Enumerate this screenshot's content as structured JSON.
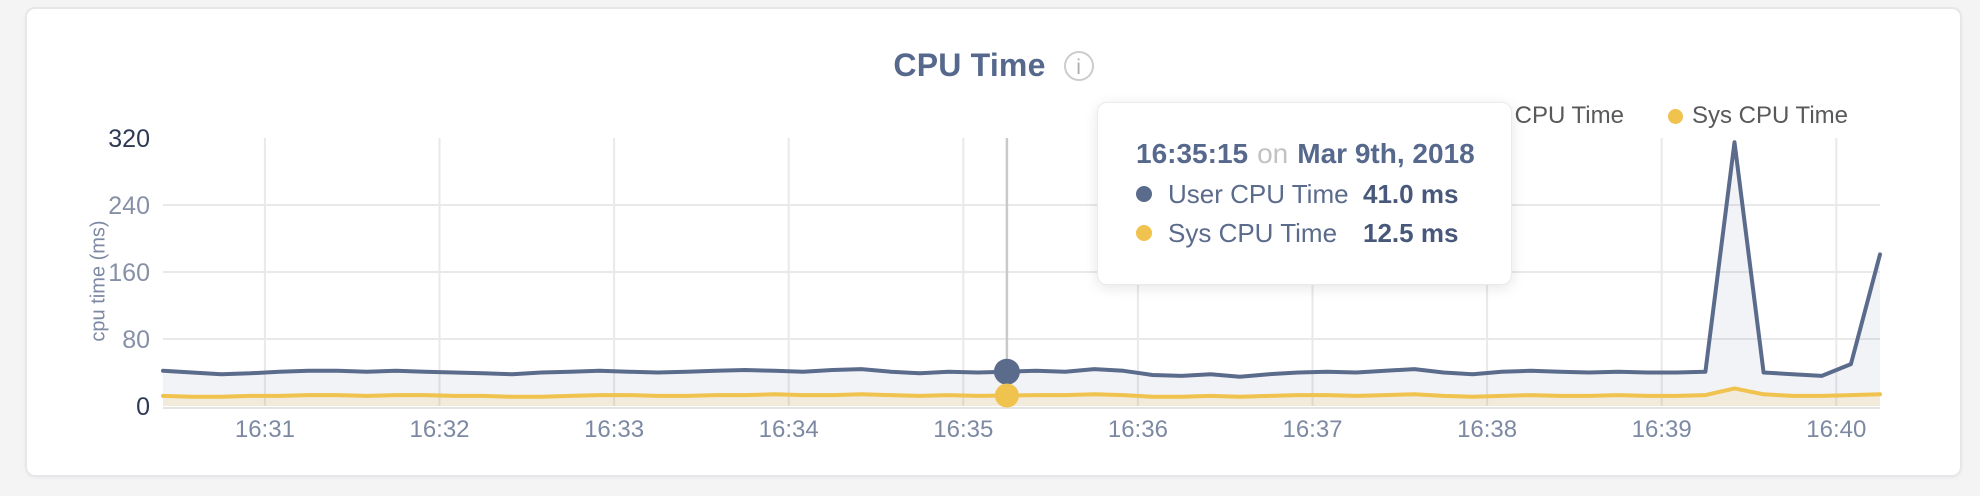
{
  "header": {
    "info_icon_glyph": "i"
  },
  "tooltip": {
    "time": "16:35:15",
    "connector": "on",
    "date": "Mar 9th, 2018",
    "rows": [
      {
        "label": "User CPU Time",
        "value": "41.0 ms"
      },
      {
        "label": "Sys CPU Time",
        "value": "12.5 ms"
      }
    ]
  },
  "chart_data": {
    "type": "area",
    "title": "CPU Time",
    "xlabel": "",
    "ylabel": "cpu time (ms)",
    "ylim": [
      0,
      320
    ],
    "yticks": [
      0,
      80,
      160,
      240,
      320
    ],
    "grid": true,
    "legend_position": "top-right",
    "xtick_labels": [
      "16:31",
      "16:32",
      "16:33",
      "16:34",
      "16:35",
      "16:36",
      "16:37",
      "16:38",
      "16:39",
      "16:40"
    ],
    "x_times": [
      "16:30:25",
      "16:30:35",
      "16:30:45",
      "16:30:55",
      "16:31:05",
      "16:31:15",
      "16:31:25",
      "16:31:35",
      "16:31:45",
      "16:31:55",
      "16:32:05",
      "16:32:15",
      "16:32:25",
      "16:32:35",
      "16:32:45",
      "16:32:55",
      "16:33:05",
      "16:33:15",
      "16:33:25",
      "16:33:35",
      "16:33:45",
      "16:33:55",
      "16:34:05",
      "16:34:15",
      "16:34:25",
      "16:34:35",
      "16:34:45",
      "16:34:55",
      "16:35:05",
      "16:35:15",
      "16:35:25",
      "16:35:35",
      "16:35:45",
      "16:35:55",
      "16:36:05",
      "16:36:15",
      "16:36:25",
      "16:36:35",
      "16:36:45",
      "16:36:55",
      "16:37:05",
      "16:37:15",
      "16:37:25",
      "16:37:35",
      "16:37:45",
      "16:37:55",
      "16:38:05",
      "16:38:15",
      "16:38:25",
      "16:38:35",
      "16:38:45",
      "16:38:55",
      "16:39:05",
      "16:39:15",
      "16:39:25",
      "16:39:35",
      "16:39:45",
      "16:39:55",
      "16:40:05",
      "16:40:15"
    ],
    "series": [
      {
        "name": "User CPU Time",
        "color": "#5b6b8c",
        "fill": "rgba(91,107,140,0.08)",
        "values": [
          42,
          40,
          38,
          39,
          41,
          42,
          42,
          41,
          42,
          41,
          40,
          39,
          38,
          40,
          41,
          42,
          41,
          40,
          41,
          42,
          43,
          42,
          41,
          43,
          44,
          41,
          39,
          41,
          40,
          41,
          42,
          41,
          44,
          42,
          37,
          36,
          38,
          35,
          38,
          40,
          41,
          40,
          42,
          44,
          40,
          38,
          41,
          42,
          41,
          40,
          41,
          40,
          40,
          41,
          315,
          40,
          38,
          36,
          50,
          181
        ]
      },
      {
        "name": "Sys CPU Time",
        "color": "#f0c24e",
        "fill": "rgba(240,194,78,0.16)",
        "values": [
          12,
          11,
          11,
          12,
          12,
          13,
          13,
          12,
          13,
          13,
          12,
          12,
          11,
          11,
          12,
          13,
          13,
          12,
          12,
          13,
          13,
          14,
          13,
          13,
          14,
          13,
          12,
          13,
          12,
          12.5,
          13,
          13,
          14,
          13,
          11,
          11,
          12,
          11,
          12,
          13,
          13,
          12,
          13,
          14,
          12,
          11,
          12,
          13,
          12,
          12,
          13,
          12,
          12,
          13,
          21,
          14,
          12,
          12,
          13,
          14
        ]
      }
    ],
    "hover": {
      "index": 29,
      "time": "16:35:15"
    }
  }
}
